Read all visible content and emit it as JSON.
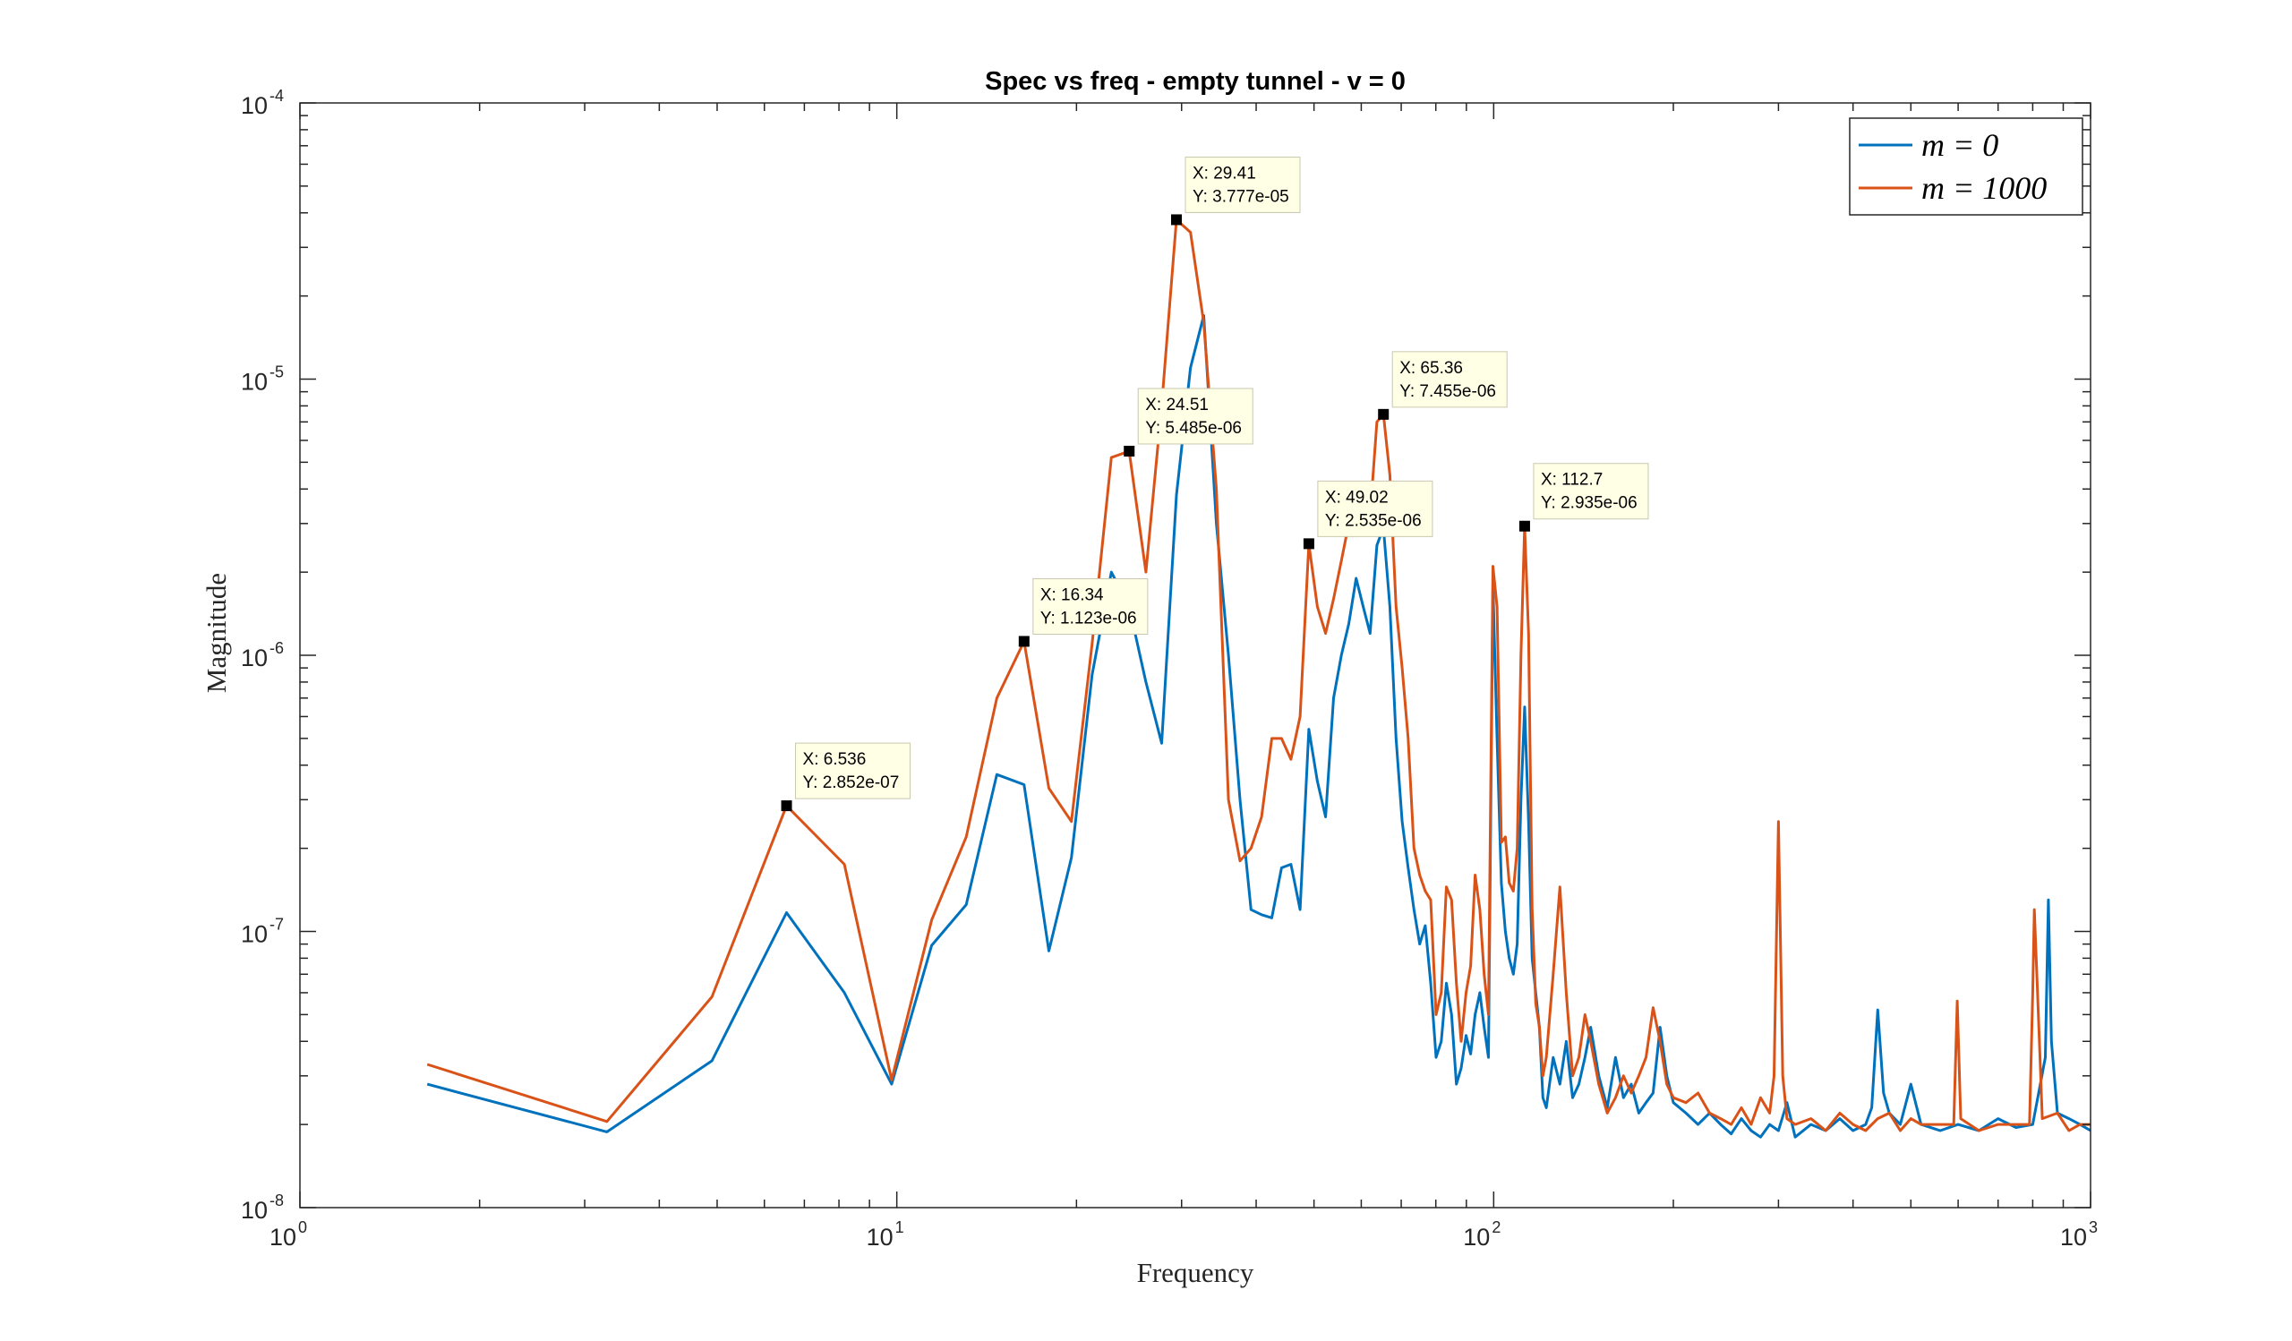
{
  "chart_data": {
    "type": "line",
    "title": "Spec vs freq - empty tunnel - v = 0",
    "xlabel": "Frequency",
    "ylabel": "Magnitude",
    "xscale": "log",
    "yscale": "log",
    "xlim": [
      1,
      1000
    ],
    "ylim": [
      1e-08,
      0.0001
    ],
    "x_ticks": [
      {
        "base": "10",
        "exp": "0"
      },
      {
        "base": "10",
        "exp": "1"
      },
      {
        "base": "10",
        "exp": "2"
      },
      {
        "base": "10",
        "exp": "3"
      }
    ],
    "y_ticks": [
      {
        "base": "10",
        "exp": "-8"
      },
      {
        "base": "10",
        "exp": "-7"
      },
      {
        "base": "10",
        "exp": "-6"
      },
      {
        "base": "10",
        "exp": "-5"
      },
      {
        "base": "10",
        "exp": "-4"
      }
    ],
    "grid": false,
    "legend_position": "top-right",
    "series": [
      {
        "name": "m = 0",
        "color": "#0072BD",
        "points": [
          [
            1.634,
            2.8e-08
          ],
          [
            3.268,
            1.88e-08
          ],
          [
            4.902,
            3.4e-08
          ],
          [
            6.536,
            1.17e-07
          ],
          [
            8.17,
            6e-08
          ],
          [
            9.804,
            2.8e-08
          ],
          [
            11.44,
            8.9e-08
          ],
          [
            13.07,
            1.25e-07
          ],
          [
            14.71,
            3.7e-07
          ],
          [
            16.34,
            3.4e-07
          ],
          [
            17.98,
            8.5e-08
          ],
          [
            19.61,
            1.85e-07
          ],
          [
            21.24,
            8.5e-07
          ],
          [
            22.88,
            2e-06
          ],
          [
            24.51,
            1.5e-06
          ],
          [
            26.14,
            8e-07
          ],
          [
            27.78,
            4.8e-07
          ],
          [
            29.41,
            3.8e-06
          ],
          [
            31.05,
            1.1e-05
          ],
          [
            32.68,
            1.7e-05
          ],
          [
            34.31,
            3e-06
          ],
          [
            35.95,
            1e-06
          ],
          [
            37.58,
            3e-07
          ],
          [
            39.22,
            1.2e-07
          ],
          [
            40.85,
            1.15e-07
          ],
          [
            42.48,
            1.12e-07
          ],
          [
            44.12,
            1.7e-07
          ],
          [
            45.75,
            1.75e-07
          ],
          [
            47.39,
            1.2e-07
          ],
          [
            49.02,
            5.4e-07
          ],
          [
            50.65,
            3.5e-07
          ],
          [
            52.29,
            2.6e-07
          ],
          [
            53.92,
            7e-07
          ],
          [
            55.56,
            1e-06
          ],
          [
            57.19,
            1.3e-06
          ],
          [
            58.82,
            1.9e-06
          ],
          [
            60.46,
            1.5e-06
          ],
          [
            62.09,
            1.2e-06
          ],
          [
            63.73,
            2.5e-06
          ],
          [
            65.36,
            2.9e-06
          ],
          [
            67.0,
            1.5e-06
          ],
          [
            68.63,
            5e-07
          ],
          [
            70.26,
            2.5e-07
          ],
          [
            71.9,
            1.7e-07
          ],
          [
            73.53,
            1.2e-07
          ],
          [
            75.17,
            9e-08
          ],
          [
            76.8,
            1.05e-07
          ],
          [
            78.43,
            6.5e-08
          ],
          [
            80.07,
            3.5e-08
          ],
          [
            81.7,
            4e-08
          ],
          [
            83.33,
            6.5e-08
          ],
          [
            85.0,
            5e-08
          ],
          [
            86.6,
            2.8e-08
          ],
          [
            88.2,
            3.2e-08
          ],
          [
            89.9,
            4.2e-08
          ],
          [
            91.5,
            3.6e-08
          ],
          [
            93.1,
            5e-08
          ],
          [
            94.8,
            6e-08
          ],
          [
            96.4,
            4.5e-08
          ],
          [
            98.0,
            3.5e-08
          ],
          [
            99.7,
            1.8e-06
          ],
          [
            101.3,
            5e-07
          ],
          [
            103.0,
            1.5e-07
          ],
          [
            104.6,
            1e-07
          ],
          [
            106.2,
            8e-08
          ],
          [
            107.9,
            7e-08
          ],
          [
            109.5,
            9e-08
          ],
          [
            111.1,
            3e-07
          ],
          [
            112.7,
            6.5e-07
          ],
          [
            114.4,
            2.5e-07
          ],
          [
            116.0,
            8e-08
          ],
          [
            117.6,
            6e-08
          ],
          [
            119.3,
            4.5e-08
          ],
          [
            120.9,
            2.5e-08
          ],
          [
            122.5,
            2.3e-08
          ],
          [
            125.8,
            3.5e-08
          ],
          [
            129.1,
            2.8e-08
          ],
          [
            132.3,
            4e-08
          ],
          [
            135.6,
            2.5e-08
          ],
          [
            138.9,
            2.8e-08
          ],
          [
            142.2,
            3.5e-08
          ],
          [
            145.4,
            4.5e-08
          ],
          [
            150.0,
            3e-08
          ],
          [
            155.0,
            2.3e-08
          ],
          [
            160.0,
            3.5e-08
          ],
          [
            165.0,
            2.5e-08
          ],
          [
            170.0,
            2.8e-08
          ],
          [
            175.0,
            2.2e-08
          ],
          [
            180.0,
            2.4e-08
          ],
          [
            185.0,
            2.6e-08
          ],
          [
            190.0,
            4.5e-08
          ],
          [
            195.0,
            3e-08
          ],
          [
            200.0,
            2.4e-08
          ],
          [
            210.0,
            2.2e-08
          ],
          [
            220.0,
            2e-08
          ],
          [
            230.0,
            2.2e-08
          ],
          [
            240.0,
            2e-08
          ],
          [
            250.0,
            1.85e-08
          ],
          [
            260.0,
            2.1e-08
          ],
          [
            270.0,
            1.9e-08
          ],
          [
            280.0,
            1.8e-08
          ],
          [
            290.0,
            2e-08
          ],
          [
            300.0,
            1.9e-08
          ],
          [
            310.0,
            2.4e-08
          ],
          [
            320.0,
            1.8e-08
          ],
          [
            340.0,
            2e-08
          ],
          [
            360.0,
            1.9e-08
          ],
          [
            380.0,
            2.1e-08
          ],
          [
            400.0,
            1.9e-08
          ],
          [
            420.0,
            2e-08
          ],
          [
            430.0,
            2.3e-08
          ],
          [
            440.0,
            5.2e-08
          ],
          [
            450.0,
            2.6e-08
          ],
          [
            460.0,
            2.2e-08
          ],
          [
            480.0,
            2e-08
          ],
          [
            500.0,
            2.8e-08
          ],
          [
            520.0,
            2e-08
          ],
          [
            560.0,
            1.9e-08
          ],
          [
            600.0,
            2e-08
          ],
          [
            650.0,
            1.9e-08
          ],
          [
            700.0,
            2.1e-08
          ],
          [
            750.0,
            1.95e-08
          ],
          [
            800.0,
            2e-08
          ],
          [
            840.0,
            3.5e-08
          ],
          [
            850.0,
            1.3e-07
          ],
          [
            860.0,
            4e-08
          ],
          [
            880.0,
            2.2e-08
          ],
          [
            920.0,
            2.1e-08
          ],
          [
            960.0,
            2e-08
          ],
          [
            1000.0,
            1.9e-08
          ]
        ]
      },
      {
        "name": "m = 1000",
        "color": "#D95319",
        "points": [
          [
            1.634,
            3.3e-08
          ],
          [
            3.268,
            2.05e-08
          ],
          [
            4.902,
            5.8e-08
          ],
          [
            6.536,
            2.852e-07
          ],
          [
            8.17,
            1.75e-07
          ],
          [
            9.804,
            2.9e-08
          ],
          [
            11.44,
            1.1e-07
          ],
          [
            13.07,
            2.2e-07
          ],
          [
            14.71,
            7e-07
          ],
          [
            16.34,
            1.123e-06
          ],
          [
            17.98,
            3.3e-07
          ],
          [
            19.61,
            2.5e-07
          ],
          [
            21.24,
            1.1e-06
          ],
          [
            22.88,
            5.2e-06
          ],
          [
            24.51,
            5.485e-06
          ],
          [
            26.14,
            2e-06
          ],
          [
            27.78,
            8e-06
          ],
          [
            29.41,
            3.777e-05
          ],
          [
            31.05,
            3.4e-05
          ],
          [
            32.68,
            1.6e-05
          ],
          [
            34.31,
            4e-06
          ],
          [
            35.95,
            3e-07
          ],
          [
            37.58,
            1.8e-07
          ],
          [
            39.22,
            2e-07
          ],
          [
            40.85,
            2.6e-07
          ],
          [
            42.48,
            5e-07
          ],
          [
            44.12,
            5e-07
          ],
          [
            45.75,
            4.2e-07
          ],
          [
            47.39,
            6e-07
          ],
          [
            49.02,
            2.535e-06
          ],
          [
            50.65,
            1.5e-06
          ],
          [
            52.29,
            1.2e-06
          ],
          [
            53.92,
            1.6e-06
          ],
          [
            55.56,
            2.2e-06
          ],
          [
            57.19,
            3e-06
          ],
          [
            58.82,
            4e-06
          ],
          [
            60.46,
            3.3e-06
          ],
          [
            62.09,
            3.2e-06
          ],
          [
            63.73,
            7e-06
          ],
          [
            65.36,
            7.455e-06
          ],
          [
            67.0,
            4.5e-06
          ],
          [
            68.63,
            1.5e-06
          ],
          [
            70.26,
            9e-07
          ],
          [
            71.9,
            5e-07
          ],
          [
            73.53,
            2e-07
          ],
          [
            75.17,
            1.6e-07
          ],
          [
            76.8,
            1.4e-07
          ],
          [
            78.43,
            1.3e-07
          ],
          [
            80.07,
            5e-08
          ],
          [
            81.7,
            6e-08
          ],
          [
            83.33,
            1.45e-07
          ],
          [
            85.0,
            1.3e-07
          ],
          [
            86.6,
            6.5e-08
          ],
          [
            88.2,
            4e-08
          ],
          [
            89.9,
            6e-08
          ],
          [
            91.5,
            7.5e-08
          ],
          [
            93.1,
            1.6e-07
          ],
          [
            94.8,
            1.2e-07
          ],
          [
            96.4,
            7e-08
          ],
          [
            98.0,
            5e-08
          ],
          [
            99.7,
            2.1e-06
          ],
          [
            101.3,
            1.5e-06
          ],
          [
            103.0,
            2.1e-07
          ],
          [
            104.6,
            2.2e-07
          ],
          [
            106.2,
            1.5e-07
          ],
          [
            107.9,
            1.4e-07
          ],
          [
            109.5,
            2e-07
          ],
          [
            111.1,
            1e-06
          ],
          [
            112.7,
            2.935e-06
          ],
          [
            114.4,
            1.2e-06
          ],
          [
            116.0,
            1.2e-07
          ],
          [
            117.6,
            5.5e-08
          ],
          [
            119.3,
            4.5e-08
          ],
          [
            120.9,
            3e-08
          ],
          [
            122.5,
            3.5e-08
          ],
          [
            125.8,
            7e-08
          ],
          [
            129.1,
            1.45e-07
          ],
          [
            132.3,
            6e-08
          ],
          [
            135.6,
            3e-08
          ],
          [
            138.9,
            3.5e-08
          ],
          [
            142.2,
            5e-08
          ],
          [
            145.4,
            4e-08
          ],
          [
            150.0,
            2.8e-08
          ],
          [
            155.0,
            2.2e-08
          ],
          [
            160.0,
            2.5e-08
          ],
          [
            165.0,
            3e-08
          ],
          [
            170.0,
            2.6e-08
          ],
          [
            175.0,
            3e-08
          ],
          [
            180.0,
            3.5e-08
          ],
          [
            185.0,
            5.3e-08
          ],
          [
            190.0,
            4e-08
          ],
          [
            195.0,
            2.8e-08
          ],
          [
            200.0,
            2.5e-08
          ],
          [
            210.0,
            2.4e-08
          ],
          [
            220.0,
            2.6e-08
          ],
          [
            230.0,
            2.2e-08
          ],
          [
            240.0,
            2.1e-08
          ],
          [
            250.0,
            2e-08
          ],
          [
            260.0,
            2.3e-08
          ],
          [
            270.0,
            2e-08
          ],
          [
            280.0,
            2.5e-08
          ],
          [
            290.0,
            2.2e-08
          ],
          [
            295.0,
            3e-08
          ],
          [
            300.0,
            2.5e-07
          ],
          [
            305.0,
            3e-08
          ],
          [
            310.0,
            2.1e-08
          ],
          [
            320.0,
            2e-08
          ],
          [
            340.0,
            2.1e-08
          ],
          [
            360.0,
            1.9e-08
          ],
          [
            380.0,
            2.2e-08
          ],
          [
            400.0,
            2e-08
          ],
          [
            420.0,
            1.9e-08
          ],
          [
            440.0,
            2.1e-08
          ],
          [
            460.0,
            2.2e-08
          ],
          [
            480.0,
            1.9e-08
          ],
          [
            500.0,
            2.1e-08
          ],
          [
            520.0,
            2e-08
          ],
          [
            560.0,
            2e-08
          ],
          [
            590.0,
            2e-08
          ],
          [
            598.0,
            5.6e-08
          ],
          [
            606.0,
            2.1e-08
          ],
          [
            650.0,
            1.9e-08
          ],
          [
            700.0,
            2e-08
          ],
          [
            750.0,
            2e-08
          ],
          [
            790.0,
            2e-08
          ],
          [
            800.0,
            6e-08
          ],
          [
            805.0,
            1.2e-07
          ],
          [
            815.0,
            6e-08
          ],
          [
            830.0,
            2.1e-08
          ],
          [
            880.0,
            2.2e-08
          ],
          [
            920.0,
            1.9e-08
          ],
          [
            960.0,
            2e-08
          ],
          [
            1000.0,
            2e-08
          ]
        ]
      }
    ],
    "datatips": [
      {
        "x": 6.536,
        "y": 2.852e-07,
        "line1": "X: 6.536",
        "line2": "Y: 2.852e-07"
      },
      {
        "x": 16.34,
        "y": 1.123e-06,
        "line1": "X: 16.34",
        "line2": "Y: 1.123e-06"
      },
      {
        "x": 24.51,
        "y": 5.485e-06,
        "line1": "X: 24.51",
        "line2": "Y: 5.485e-06"
      },
      {
        "x": 29.41,
        "y": 3.777e-05,
        "line1": "X: 29.41",
        "line2": "Y: 3.777e-05"
      },
      {
        "x": 49.02,
        "y": 2.535e-06,
        "line1": "X: 49.02",
        "line2": "Y: 2.535e-06"
      },
      {
        "x": 65.36,
        "y": 7.455e-06,
        "line1": "X: 65.36",
        "line2": "Y: 7.455e-06"
      },
      {
        "x": 112.7,
        "y": 2.935e-06,
        "line1": "X: 112.7",
        "line2": "Y: 2.935e-06"
      }
    ]
  }
}
